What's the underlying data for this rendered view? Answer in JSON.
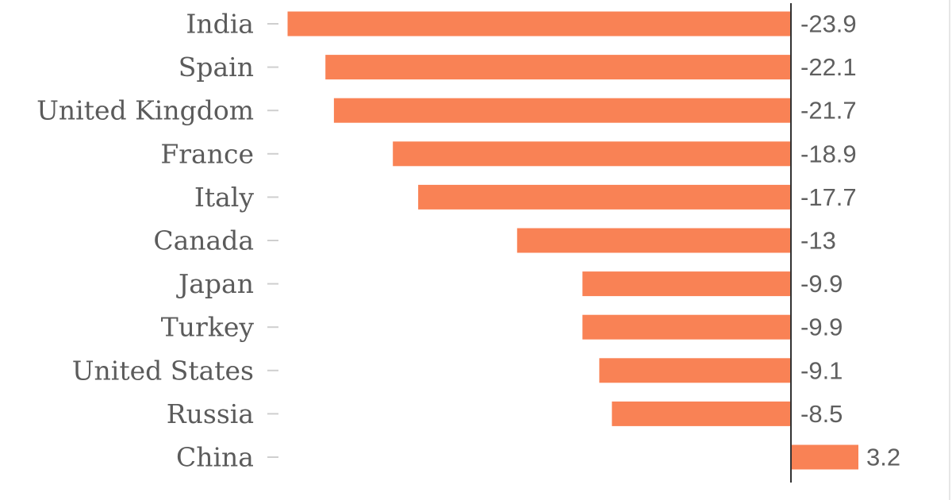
{
  "chart_data": {
    "type": "bar",
    "orientation": "horizontal",
    "categories": [
      "India",
      "Spain",
      "United Kingdom",
      "France",
      "Italy",
      "Canada",
      "Japan",
      "Turkey",
      "United States",
      "Russia",
      "China"
    ],
    "values": [
      -23.9,
      -22.1,
      -21.7,
      -18.9,
      -17.7,
      -13,
      -9.9,
      -9.9,
      -9.1,
      -8.5,
      3.2
    ],
    "value_labels": [
      "-23.9",
      "-22.1",
      "-21.7",
      "-18.9",
      "-17.7",
      "-13",
      "-9.9",
      "-9.9",
      "-9.1",
      "-8.5",
      "3.2"
    ],
    "title": "",
    "xlabel": "",
    "ylabel": "",
    "xlim": [
      -23.9,
      3.2
    ],
    "grid": false,
    "legend": "none",
    "bar_color": "#f98255",
    "axis_color": "#333333"
  }
}
